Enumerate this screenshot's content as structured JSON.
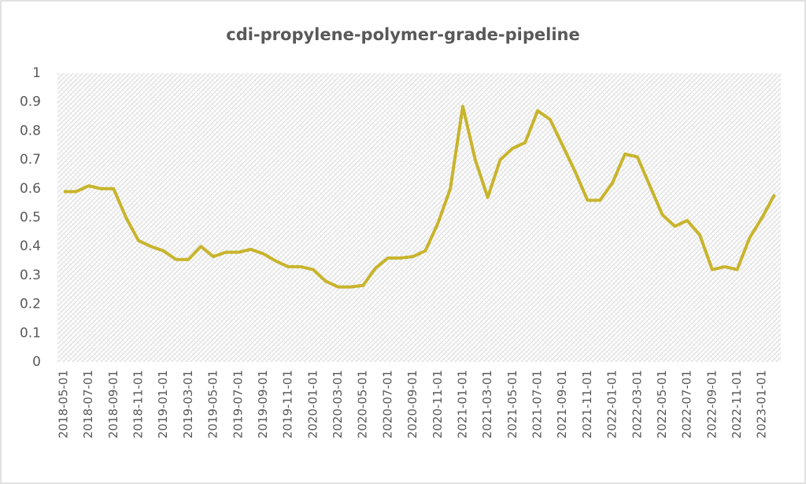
{
  "chart_data": {
    "type": "line",
    "title": "cdi-propylene-polymer-grade-pipeline",
    "categories": [
      "2018-05-01",
      null,
      "2018-07-01",
      null,
      "2018-09-01",
      null,
      "2018-11-01",
      null,
      "2019-01-01",
      null,
      "2019-03-01",
      null,
      "2019-05-01",
      null,
      "2019-07-01",
      null,
      "2019-09-01",
      null,
      "2019-11-01",
      null,
      "2020-01-01",
      null,
      "2020-03-01",
      null,
      "2020-05-01",
      null,
      "2020-07-01",
      null,
      "2020-09-01",
      null,
      "2020-11-01",
      null,
      "2021-01-01",
      null,
      "2021-03-01",
      null,
      "2021-05-01",
      null,
      "2021-07-01",
      null,
      "2021-09-01",
      null,
      "2021-11-01",
      null,
      "2022-01-01",
      null,
      "2022-03-01",
      null,
      "2022-05-01",
      null,
      "2022-07-01",
      null,
      "2022-09-01",
      null,
      "2022-11-01",
      null,
      "2023-01-01",
      null
    ],
    "series": [
      {
        "color": "#c8b42c",
        "values": [
          0.59,
          0.59,
          0.61,
          0.6,
          0.6,
          0.5,
          0.42,
          0.4,
          0.385,
          0.355,
          0.355,
          0.4,
          0.365,
          0.38,
          0.38,
          0.39,
          0.375,
          0.35,
          0.33,
          0.33,
          0.32,
          0.28,
          0.26,
          0.26,
          0.265,
          0.325,
          0.36,
          0.36,
          0.365,
          0.385,
          0.48,
          0.6,
          0.885,
          0.7,
          0.57,
          0.7,
          0.74,
          0.76,
          0.87,
          0.84,
          0.75,
          0.66,
          0.56,
          0.56,
          0.62,
          0.72,
          0.71,
          0.61,
          0.51,
          0.47,
          0.49,
          0.44,
          0.32,
          0.33,
          0.32,
          0.43,
          0.5,
          0.58
        ]
      }
    ],
    "ylim": [
      0,
      1
    ],
    "yticks": [
      0,
      0.1,
      0.2,
      0.3,
      0.4,
      0.5,
      0.6,
      0.7,
      0.8,
      0.9,
      1
    ]
  }
}
